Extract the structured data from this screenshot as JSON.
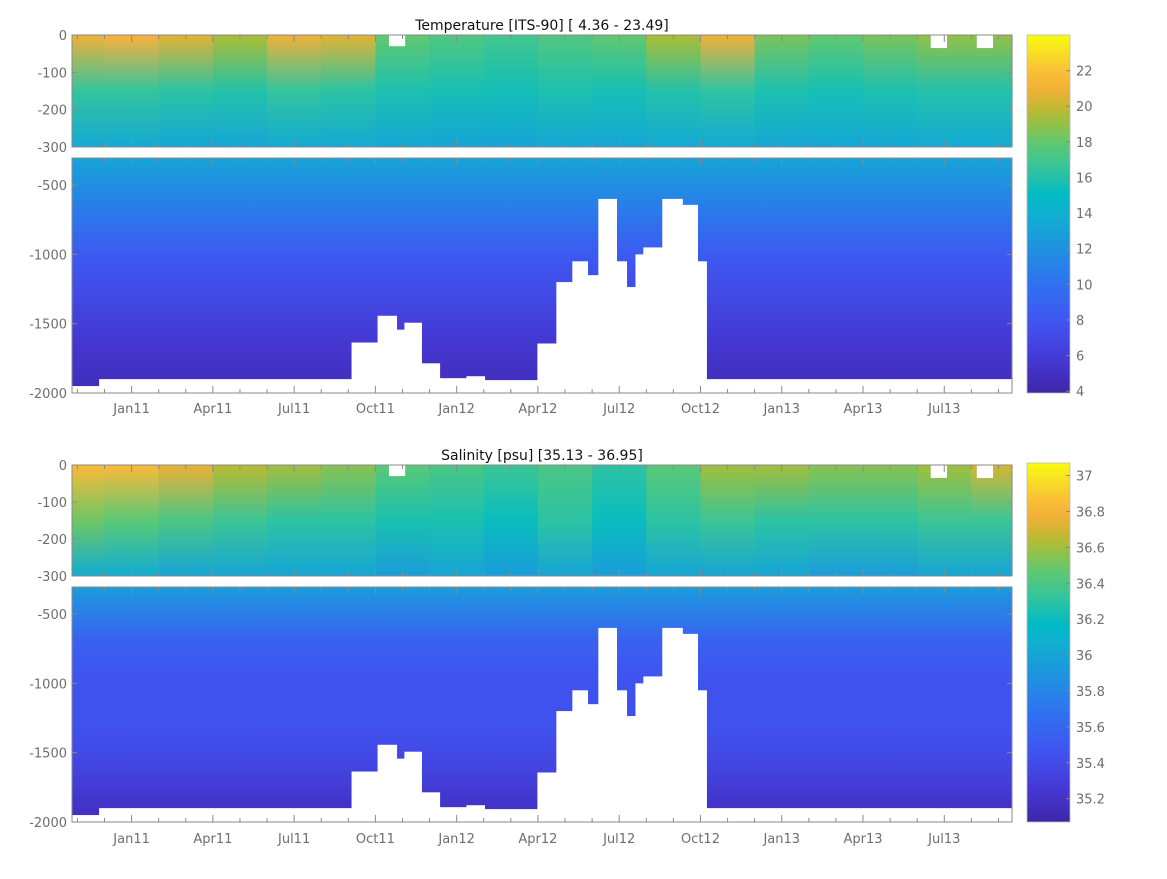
{
  "chart_data": [
    {
      "type": "heatmap",
      "subtype": "filled-contour depth-time section",
      "title": "Temperature [ITS-90]   [ 4.36 - 23.49]",
      "variable": "Temperature",
      "units": "ITS-90",
      "data_range": [
        4.36,
        23.49
      ],
      "x_axis": {
        "unit": "months since Jan11",
        "range": [
          -2.2,
          32.5
        ],
        "ticks": [
          {
            "m": 0,
            "label": "Jan11"
          },
          {
            "m": 3,
            "label": "Apr11"
          },
          {
            "m": 6,
            "label": "Jul11"
          },
          {
            "m": 9,
            "label": "Oct11"
          },
          {
            "m": 12,
            "label": "Jan12"
          },
          {
            "m": 15,
            "label": "Apr12"
          },
          {
            "m": 18,
            "label": "Jul12"
          },
          {
            "m": 21,
            "label": "Oct12"
          },
          {
            "m": 24,
            "label": "Jan13"
          },
          {
            "m": 27,
            "label": "Apr13"
          },
          {
            "m": 30,
            "label": "Jul13"
          }
        ]
      },
      "y_upper": {
        "range": [
          0,
          -300
        ],
        "ticks": [
          {
            "v": 0,
            "label": "0"
          },
          {
            "v": -100,
            "label": "-100"
          },
          {
            "v": -200,
            "label": "-200"
          },
          {
            "v": -300,
            "label": "-300"
          }
        ]
      },
      "y_lower": {
        "range": [
          -305,
          -2000
        ],
        "ticks": [
          {
            "v": -500,
            "label": "-500"
          },
          {
            "v": -1000,
            "label": "-1000"
          },
          {
            "v": -1500,
            "label": "-1500"
          },
          {
            "v": -2000,
            "label": "-2000"
          }
        ]
      },
      "colorbar": {
        "range": [
          3.9,
          24.0
        ],
        "ticks": [
          {
            "v": 4,
            "label": "4"
          },
          {
            "v": 6,
            "label": "6"
          },
          {
            "v": 8,
            "label": "8"
          },
          {
            "v": 10,
            "label": "10"
          },
          {
            "v": 12,
            "label": "12"
          },
          {
            "v": 14,
            "label": "14"
          },
          {
            "v": 16,
            "label": "16"
          },
          {
            "v": 18,
            "label": "18"
          },
          {
            "v": 20,
            "label": "20"
          },
          {
            "v": 22,
            "label": "22"
          }
        ]
      },
      "upper_field": {
        "months": [
          -2,
          0,
          2,
          4,
          6,
          8,
          10,
          12,
          14,
          16,
          18,
          20,
          22,
          24,
          26,
          28,
          30,
          32
        ],
        "surface": [
          21,
          21.5,
          20.5,
          19.5,
          21,
          20.5,
          18,
          17.5,
          17,
          17.5,
          18,
          19.5,
          21,
          18.5,
          18,
          18.5,
          19,
          19
        ],
        "mid_150": [
          16.5,
          16.5,
          16.2,
          16,
          16.5,
          16.2,
          15.8,
          15.6,
          15.5,
          15.8,
          15.6,
          16,
          16.3,
          15.8,
          15.6,
          15.8,
          16,
          16
        ],
        "bottom_300": [
          13.5,
          13.5,
          13.4,
          13.3,
          13.6,
          13.5,
          13.3,
          13.2,
          13.2,
          13.4,
          13.3,
          13.5,
          13.6,
          13.4,
          13.3,
          13.4,
          13.5,
          13.5
        ]
      },
      "lower_profile": [
        {
          "d": -305,
          "v": 13.2
        },
        {
          "d": -450,
          "v": 12.2
        },
        {
          "d": -700,
          "v": 10.5
        },
        {
          "d": -1000,
          "v": 8.3
        },
        {
          "d": -1300,
          "v": 7.0
        },
        {
          "d": -1600,
          "v": 5.8
        },
        {
          "d": -1850,
          "v": 5.0
        },
        {
          "d": -2000,
          "v": 4.6
        }
      ]
    },
    {
      "type": "heatmap",
      "subtype": "filled-contour depth-time section",
      "title": "Salinity [psu]   [35.13 - 36.95]",
      "variable": "Salinity",
      "units": "psu",
      "data_range": [
        35.13,
        36.95
      ],
      "x_axis": {
        "unit": "months since Jan11",
        "range": [
          -2.2,
          32.5
        ],
        "ticks": [
          {
            "m": 0,
            "label": "Jan11"
          },
          {
            "m": 3,
            "label": "Apr11"
          },
          {
            "m": 6,
            "label": "Jul11"
          },
          {
            "m": 9,
            "label": "Oct11"
          },
          {
            "m": 12,
            "label": "Jan12"
          },
          {
            "m": 15,
            "label": "Apr12"
          },
          {
            "m": 18,
            "label": "Jul12"
          },
          {
            "m": 21,
            "label": "Oct12"
          },
          {
            "m": 24,
            "label": "Jan13"
          },
          {
            "m": 27,
            "label": "Apr13"
          },
          {
            "m": 30,
            "label": "Jul13"
          }
        ]
      },
      "y_upper": {
        "range": [
          0,
          -300
        ],
        "ticks": [
          {
            "v": 0,
            "label": "0"
          },
          {
            "v": -100,
            "label": "-100"
          },
          {
            "v": -200,
            "label": "-200"
          },
          {
            "v": -300,
            "label": "-300"
          }
        ]
      },
      "y_lower": {
        "range": [
          -305,
          -2000
        ],
        "ticks": [
          {
            "v": -500,
            "label": "-500"
          },
          {
            "v": -1000,
            "label": "-1000"
          },
          {
            "v": -1500,
            "label": "-1500"
          },
          {
            "v": -2000,
            "label": "-2000"
          }
        ]
      },
      "colorbar": {
        "range": [
          35.07,
          37.07
        ],
        "ticks": [
          {
            "v": 35.2,
            "label": "35.2"
          },
          {
            "v": 35.4,
            "label": "35.4"
          },
          {
            "v": 35.6,
            "label": "35.6"
          },
          {
            "v": 35.8,
            "label": "35.8"
          },
          {
            "v": 36,
            "label": "36"
          },
          {
            "v": 36.2,
            "label": "36.2"
          },
          {
            "v": 36.4,
            "label": "36.4"
          },
          {
            "v": 36.6,
            "label": "36.6"
          },
          {
            "v": 36.8,
            "label": "36.8"
          },
          {
            "v": 37,
            "label": "37"
          }
        ]
      },
      "upper_field": {
        "months": [
          -2,
          0,
          2,
          4,
          6,
          8,
          10,
          12,
          14,
          16,
          18,
          20,
          22,
          24,
          26,
          28,
          30,
          32
        ],
        "surface": [
          36.85,
          36.85,
          36.75,
          36.65,
          36.6,
          36.55,
          36.45,
          36.4,
          36.35,
          36.4,
          36.3,
          36.45,
          36.6,
          36.6,
          36.55,
          36.55,
          36.6,
          36.7
        ],
        "mid_150": [
          36.5,
          36.45,
          36.4,
          36.35,
          36.3,
          36.3,
          36.25,
          36.25,
          36.2,
          36.3,
          36.2,
          36.3,
          36.35,
          36.3,
          36.3,
          36.3,
          36.35,
          36.35
        ],
        "bottom_300": [
          36.05,
          36.05,
          36.0,
          36.0,
          36.0,
          36.0,
          35.95,
          36.0,
          35.95,
          36.0,
          35.95,
          36.0,
          36.0,
          36.0,
          35.95,
          35.95,
          36.0,
          36.0
        ]
      },
      "lower_profile": [
        {
          "d": -305,
          "v": 35.95
        },
        {
          "d": -450,
          "v": 35.8
        },
        {
          "d": -700,
          "v": 35.55
        },
        {
          "d": -1000,
          "v": 35.45
        },
        {
          "d": -1300,
          "v": 35.45
        },
        {
          "d": -1600,
          "v": 35.35
        },
        {
          "d": -1850,
          "v": 35.22
        },
        {
          "d": -2000,
          "v": 35.15
        }
      ]
    }
  ],
  "coverage_gaps": {
    "note_unit": "months since Jan11 / depth m",
    "deep": [
      [
        -2.2,
        -1.2,
        -1950
      ],
      [
        -1.2,
        8.12,
        -1900
      ],
      [
        8.12,
        9.08,
        -1636
      ],
      [
        9.08,
        9.78,
        -1443
      ],
      [
        9.78,
        10.07,
        -1543
      ],
      [
        10.07,
        10.7,
        -1493
      ],
      [
        10.7,
        11.37,
        -1786
      ],
      [
        11.37,
        12.36,
        -1893
      ],
      [
        12.36,
        13.03,
        -1879
      ],
      [
        13.03,
        14.98,
        -1907
      ],
      [
        14.98,
        15.68,
        -1643
      ],
      [
        15.68,
        16.27,
        -1200
      ],
      [
        16.27,
        16.83,
        -1050
      ],
      [
        16.83,
        17.23,
        -1150
      ],
      [
        17.23,
        17.9,
        -600
      ],
      [
        17.9,
        18.27,
        -1050
      ],
      [
        18.27,
        18.6,
        -1236
      ],
      [
        18.6,
        18.89,
        -1000
      ],
      [
        18.89,
        19.59,
        -950
      ],
      [
        19.59,
        20.33,
        -600
      ],
      [
        20.33,
        20.89,
        -643
      ],
      [
        20.89,
        21.22,
        -1050
      ],
      [
        21.22,
        32.5,
        -1900
      ]
    ],
    "surface": [
      [
        9.5,
        10.1,
        -30
      ],
      [
        29.5,
        30.1,
        -35
      ],
      [
        31.2,
        31.8,
        -35
      ]
    ]
  },
  "colors": {
    "axis": "#8a8a8a",
    "tick_label": "#6e6e6e",
    "gap": "#ffffff"
  }
}
